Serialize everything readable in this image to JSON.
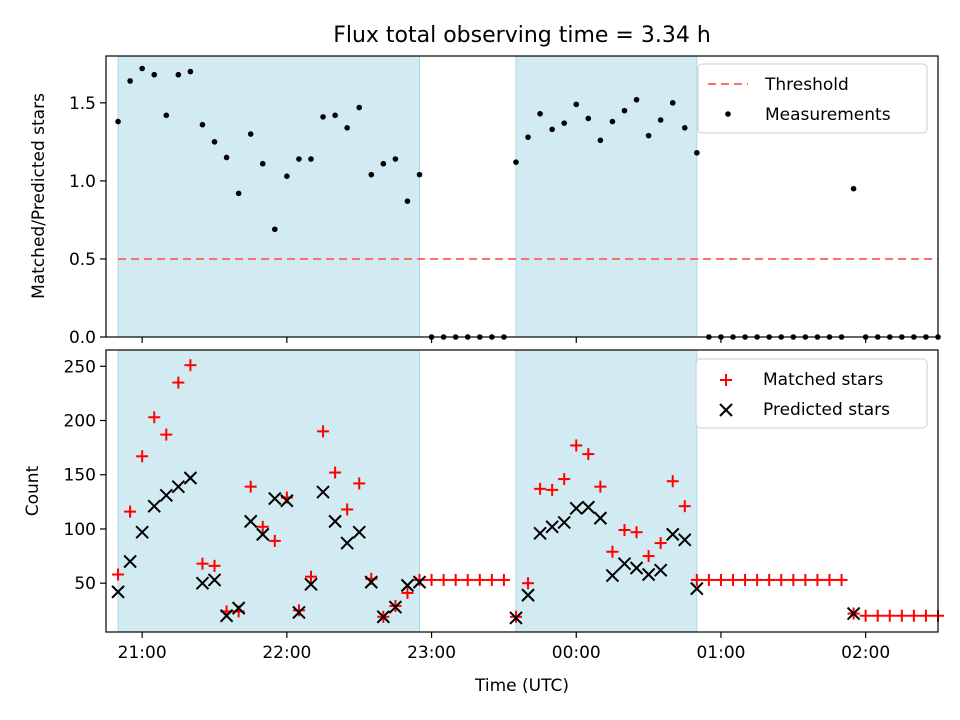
{
  "title": "Flux total observing time = 3.34 h",
  "colors": {
    "span": "#add8e6",
    "threshold": "#ff6f6f",
    "measurement": "#000000",
    "matched": "#ff0000",
    "predicted": "#000000"
  },
  "chart_data": [
    {
      "type": "scatter",
      "ylabel": "Matched/Predicted stars",
      "ylim": [
        0,
        1.8
      ],
      "yticks": [
        0.0,
        0.5,
        1.0,
        1.5
      ],
      "ytick_labels": [
        "0.0",
        "0.5",
        "1.0",
        "1.5"
      ],
      "xlim": [
        "20:45",
        "02:30"
      ],
      "xticks": [
        "21:00",
        "22:00",
        "23:00",
        "00:00",
        "01:00",
        "02:00"
      ],
      "shaded_spans": [
        [
          "20:50",
          "22:55"
        ],
        [
          "23:35",
          "00:50"
        ]
      ],
      "legend": {
        "placement": "upper right",
        "entries": [
          "Threshold",
          "Measurements"
        ]
      },
      "threshold": {
        "name": "Threshold",
        "y": 0.5,
        "x_range": [
          "20:50",
          "02:30"
        ]
      },
      "series": [
        {
          "name": "Measurements",
          "marker": "dot",
          "x": [
            "20:50",
            "20:55",
            "21:00",
            "21:05",
            "21:10",
            "21:15",
            "21:20",
            "21:25",
            "21:30",
            "21:35",
            "21:40",
            "21:45",
            "21:50",
            "21:55",
            "22:00",
            "22:05",
            "22:10",
            "22:15",
            "22:20",
            "22:25",
            "22:30",
            "22:35",
            "22:40",
            "22:45",
            "22:50",
            "22:55",
            "23:00",
            "23:05",
            "23:10",
            "23:15",
            "23:20",
            "23:25",
            "23:30",
            "23:35",
            "23:40",
            "23:45",
            "23:50",
            "23:55",
            "00:00",
            "00:05",
            "00:10",
            "00:15",
            "00:20",
            "00:25",
            "00:30",
            "00:35",
            "00:40",
            "00:45",
            "00:50",
            "00:55",
            "01:00",
            "01:05",
            "01:10",
            "01:15",
            "01:20",
            "01:25",
            "01:30",
            "01:35",
            "01:40",
            "01:45",
            "01:50",
            "01:55",
            "02:00",
            "02:05",
            "02:10",
            "02:15",
            "02:20",
            "02:25",
            "02:30"
          ],
          "y": [
            1.38,
            1.64,
            1.72,
            1.68,
            1.42,
            1.68,
            1.7,
            1.36,
            1.25,
            1.15,
            0.92,
            1.3,
            1.11,
            0.69,
            1.03,
            1.14,
            1.14,
            1.41,
            1.42,
            1.34,
            1.47,
            1.04,
            1.11,
            1.14,
            0.87,
            1.04,
            0,
            0,
            0,
            0,
            0,
            0,
            0,
            1.12,
            1.28,
            1.43,
            1.33,
            1.37,
            1.49,
            1.4,
            1.26,
            1.38,
            1.45,
            1.52,
            1.29,
            1.39,
            1.5,
            1.34,
            1.18,
            0,
            0,
            0,
            0,
            0,
            0,
            0,
            0,
            0,
            0,
            0,
            0,
            0.95,
            0,
            0,
            0,
            0,
            0,
            0,
            0
          ]
        }
      ]
    },
    {
      "type": "scatter",
      "xlabel": "Time (UTC)",
      "ylabel": "Count",
      "ylim": [
        5,
        265
      ],
      "yticks": [
        50,
        100,
        150,
        200,
        250
      ],
      "ytick_labels": [
        "50",
        "100",
        "150",
        "200",
        "250"
      ],
      "xlim": [
        "20:45",
        "02:30"
      ],
      "xticks": [
        "21:00",
        "22:00",
        "23:00",
        "00:00",
        "01:00",
        "02:00"
      ],
      "xtick_labels": [
        "21:00",
        "22:00",
        "23:00",
        "00:00",
        "01:00",
        "02:00"
      ],
      "shaded_spans": [
        [
          "20:50",
          "22:55"
        ],
        [
          "23:35",
          "00:50"
        ]
      ],
      "legend": {
        "placement": "upper right",
        "entries": [
          "Matched stars",
          "Predicted stars"
        ]
      },
      "series": [
        {
          "name": "Matched stars",
          "marker": "plus",
          "x": [
            "20:50",
            "20:55",
            "21:00",
            "21:05",
            "21:10",
            "21:15",
            "21:20",
            "21:25",
            "21:30",
            "21:35",
            "21:40",
            "21:45",
            "21:50",
            "21:55",
            "22:00",
            "22:05",
            "22:10",
            "22:15",
            "22:20",
            "22:25",
            "22:30",
            "22:35",
            "22:40",
            "22:45",
            "22:50",
            "22:55",
            "23:00",
            "23:05",
            "23:10",
            "23:15",
            "23:20",
            "23:25",
            "23:30",
            "23:35",
            "23:40",
            "23:45",
            "23:50",
            "23:55",
            "00:00",
            "00:05",
            "00:10",
            "00:15",
            "00:20",
            "00:25",
            "00:30",
            "00:35",
            "00:40",
            "00:45",
            "00:50",
            "00:55",
            "01:00",
            "01:05",
            "01:10",
            "01:15",
            "01:20",
            "01:25",
            "01:30",
            "01:35",
            "01:40",
            "01:45",
            "01:50",
            "01:55",
            "02:00",
            "02:05",
            "02:10",
            "02:15",
            "02:20",
            "02:25",
            "02:30"
          ],
          "y": [
            58,
            116,
            167,
            203,
            187,
            235,
            251,
            68,
            66,
            24,
            24,
            139,
            102,
            89,
            129,
            25,
            56,
            190,
            152,
            118,
            142,
            54,
            19,
            29,
            41,
            53,
            53,
            53,
            53,
            53,
            53,
            53,
            53,
            19,
            50,
            137,
            136,
            146,
            177,
            169,
            139,
            79,
            99,
            97,
            75,
            87,
            144,
            121,
            53,
            53,
            53,
            53,
            53,
            53,
            53,
            53,
            53,
            53,
            53,
            53,
            53,
            22,
            20,
            20,
            20,
            20,
            20,
            20,
            20
          ]
        },
        {
          "name": "Predicted stars",
          "marker": "x",
          "x": [
            "20:50",
            "20:55",
            "21:00",
            "21:05",
            "21:10",
            "21:15",
            "21:20",
            "21:25",
            "21:30",
            "21:35",
            "21:40",
            "21:45",
            "21:50",
            "21:55",
            "22:00",
            "22:05",
            "22:10",
            "22:15",
            "22:20",
            "22:25",
            "22:30",
            "22:35",
            "22:40",
            "22:45",
            "22:50",
            "22:55",
            "23:35",
            "23:40",
            "23:45",
            "23:50",
            "23:55",
            "00:00",
            "00:05",
            "00:10",
            "00:15",
            "00:20",
            "00:25",
            "00:30",
            "00:35",
            "00:40",
            "00:45",
            "00:50",
            "01:55"
          ],
          "y": [
            42,
            70,
            97,
            121,
            131,
            139,
            147,
            50,
            53,
            20,
            27,
            107,
            95,
            128,
            126,
            23,
            49,
            134,
            107,
            87,
            97,
            51,
            19,
            28,
            48,
            51,
            18,
            39,
            96,
            102,
            106,
            119,
            120,
            110,
            57,
            68,
            64,
            58,
            62,
            95,
            90,
            45,
            22
          ]
        }
      ]
    }
  ]
}
